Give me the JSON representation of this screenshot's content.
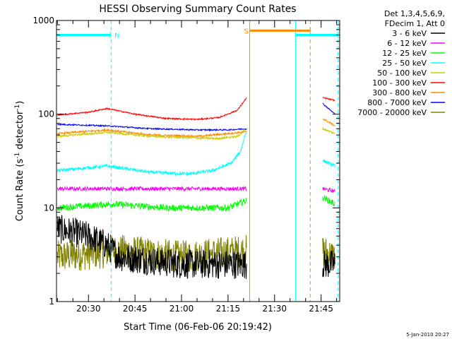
{
  "chart_data": {
    "type": "line",
    "title": "HESSI Observing Summary Count Rates",
    "xlabel": "Start Time (06-Feb-06 20:19:42)",
    "ylabel_main": "Count Rate (s",
    "ylabel_sup1": "-1",
    "ylabel_mid": " detector",
    "ylabel_sup2": "-1",
    "ylabel_end": ")",
    "y_scale": "log",
    "ylim": [
      1,
      1000
    ],
    "x_start_min": 1219.7,
    "x_end_min": 1311,
    "y_ticks": [
      {
        "value": 1,
        "label": "1"
      },
      {
        "value": 10,
        "label": "10"
      },
      {
        "value": 100,
        "label": "100"
      },
      {
        "value": 1000,
        "label": "1000"
      }
    ],
    "x_ticks": [
      {
        "value": 1230,
        "label": "20:30"
      },
      {
        "value": 1245,
        "label": "20:45"
      },
      {
        "value": 1260,
        "label": "21:00"
      },
      {
        "value": 1275,
        "label": "21:15"
      },
      {
        "value": 1290,
        "label": "21:30"
      },
      {
        "value": 1305,
        "label": "21:45"
      }
    ],
    "legend_header": [
      "Det 1,3,4,5,6,9,",
      "FDecim 1, Att 0"
    ],
    "legend_position": "right",
    "series": [
      {
        "name": "3 - 6 keV",
        "color": "#000000",
        "segments": [
          [
            1220,
            1281,
            [
              [
                1220,
                6
              ],
              [
                1230,
                5
              ],
              [
                1236,
                4
              ],
              [
                1240,
                3
              ],
              [
                1260,
                2.5
              ],
              [
                1281,
                2.5
              ]
            ]
          ],
          [
            1305.5,
            1309.5,
            [
              [
                1305.5,
                2.5
              ],
              [
                1309.5,
                2.5
              ]
            ]
          ]
        ],
        "noise": 0.45
      },
      {
        "name": "6 - 12 keV",
        "color": "#ff00ff",
        "segments": [
          [
            1220,
            1281,
            [
              [
                1220,
                16
              ],
              [
                1281,
                16
              ]
            ]
          ],
          [
            1305.5,
            1309.5,
            [
              [
                1305.5,
                16
              ],
              [
                1309.5,
                15
              ]
            ]
          ]
        ],
        "noise": 0.06
      },
      {
        "name": "12 - 25 keV",
        "color": "#00ff00",
        "segments": [
          [
            1220,
            1281,
            [
              [
                1220,
                10
              ],
              [
                1238,
                11
              ],
              [
                1255,
                10
              ],
              [
                1275,
                10
              ],
              [
                1281,
                12
              ]
            ]
          ],
          [
            1305.5,
            1309.5,
            [
              [
                1305.5,
                13
              ],
              [
                1309.5,
                11
              ]
            ]
          ]
        ],
        "noise": 0.1
      },
      {
        "name": "25 - 50 keV",
        "color": "#00ffff",
        "segments": [
          [
            1220,
            1281,
            [
              [
                1220,
                25
              ],
              [
                1236,
                28
              ],
              [
                1250,
                24
              ],
              [
                1262,
                23
              ],
              [
                1270,
                25
              ],
              [
                1276,
                30
              ],
              [
                1279,
                40
              ],
              [
                1281,
                68
              ]
            ]
          ],
          [
            1305.5,
            1309.5,
            [
              [
                1305.5,
                32
              ],
              [
                1309.5,
                28
              ]
            ]
          ]
        ],
        "noise": 0.05
      },
      {
        "name": "50 - 100 keV",
        "color": "#cccc00",
        "segments": [
          [
            1220,
            1281,
            [
              [
                1220,
                58
              ],
              [
                1236,
                64
              ],
              [
                1250,
                58
              ],
              [
                1262,
                56
              ],
              [
                1272,
                55
              ],
              [
                1278,
                58
              ],
              [
                1281,
                70
              ]
            ]
          ],
          [
            1305.5,
            1309.5,
            [
              [
                1305.5,
                70
              ],
              [
                1309.5,
                62
              ]
            ]
          ]
        ],
        "noise": 0.03
      },
      {
        "name": "100 - 300 keV",
        "color": "#ff0000",
        "segments": [
          [
            1220,
            1281,
            [
              [
                1220,
                98
              ],
              [
                1230,
                105
              ],
              [
                1236,
                115
              ],
              [
                1245,
                100
              ],
              [
                1255,
                90
              ],
              [
                1265,
                88
              ],
              [
                1272,
                92
              ],
              [
                1278,
                110
              ],
              [
                1281,
                150
              ]
            ]
          ],
          [
            1305.5,
            1309.5,
            [
              [
                1305.5,
                150
              ],
              [
                1309.5,
                140
              ]
            ]
          ]
        ],
        "noise": 0.02
      },
      {
        "name": "300 - 800 keV",
        "color": "#ff8c00",
        "segments": [
          [
            1220,
            1281,
            [
              [
                1220,
                62
              ],
              [
                1236,
                68
              ],
              [
                1250,
                60
              ],
              [
                1265,
                58
              ],
              [
                1275,
                62
              ],
              [
                1281,
                65
              ]
            ]
          ],
          [
            1305.5,
            1309.5,
            [
              [
                1305.5,
                90
              ],
              [
                1309.5,
                75
              ]
            ]
          ]
        ],
        "noise": 0.03
      },
      {
        "name": "800 - 7000 keV",
        "color": "#0000ff",
        "segments": [
          [
            1220,
            1281,
            [
              [
                1220,
                78
              ],
              [
                1236,
                75
              ],
              [
                1250,
                70
              ],
              [
                1265,
                68
              ],
              [
                1275,
                68
              ],
              [
                1281,
                70
              ]
            ]
          ],
          [
            1305.5,
            1309.5,
            [
              [
                1305.5,
                130
              ],
              [
                1309.5,
                100
              ]
            ]
          ]
        ],
        "noise": 0.02
      },
      {
        "name": "7000 - 20000 keV",
        "color": "#808000",
        "segments": [
          [
            1220,
            1281,
            [
              [
                1220,
                3
              ],
              [
                1240,
                3.5
              ],
              [
                1260,
                3
              ],
              [
                1281,
                3.5
              ]
            ]
          ],
          [
            1305.5,
            1309.5,
            [
              [
                1305.5,
                3.5
              ],
              [
                1309.5,
                3
              ]
            ]
          ]
        ],
        "noise": 0.5
      }
    ],
    "flag_lines": [
      {
        "label": "N",
        "color": "#00ffff",
        "y": 700,
        "x_start": 1219.7,
        "x_end": 1237,
        "end_marker": 1237
      },
      {
        "label": "",
        "color": "#00ffff",
        "y": 700,
        "x_start": 1297,
        "x_end": 1310.5,
        "end_marker": 1310.5
      },
      {
        "label": "S",
        "color": "#ff8c00",
        "y": 780,
        "x_start": 1282,
        "x_end": 1301.5,
        "end_marker": 1301.5
      }
    ],
    "vertical_lines": [
      {
        "x": 1237.3,
        "color": "#00ffff",
        "dashed": true
      },
      {
        "x": 1282.0,
        "color": "#ff8c00",
        "dashed": false
      },
      {
        "x": 1296.8,
        "color": "#00ffff",
        "dashed": false
      },
      {
        "x": 1301.5,
        "color": "#ff8c00",
        "dashed": true
      },
      {
        "x": 1310.5,
        "color": "#00ffff",
        "dashed": true
      }
    ],
    "footer": "5-Jan-2010 20:27"
  }
}
